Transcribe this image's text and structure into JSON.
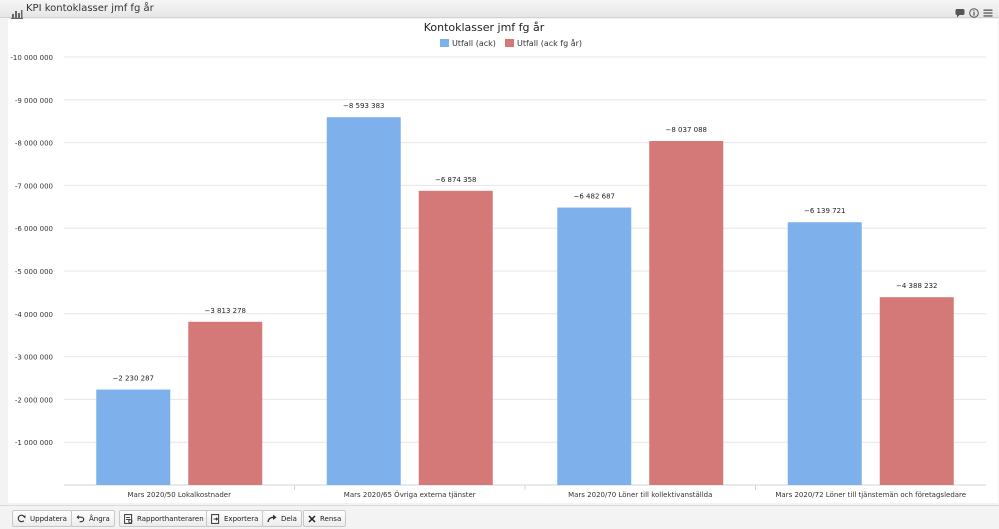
{
  "window": {
    "title": "KPI kontoklasser jmf fg år"
  },
  "colors": {
    "series_a": "#7eb0ec",
    "series_b": "#d47977",
    "grid": "#e6e6e6",
    "axis_text": "#333333"
  },
  "chart_data": {
    "type": "bar",
    "title": "Kontoklasser jmf fg år",
    "categories": [
      "Mars 2020/50 Lokalkostnader",
      "Mars 2020/65 Övriga externa tjänster",
      "Mars 2020/70 Löner till kollektivanställda",
      "Mars 2020/72 Löner till tjänstemän och företagsledare"
    ],
    "series": [
      {
        "name": "Utfall (ack)",
        "values": [
          -2230287,
          -8593383,
          -6482687,
          -6139721
        ],
        "labels": [
          "−2 230 287",
          "−8 593 383",
          "−6 482 687",
          "−6 139 721"
        ]
      },
      {
        "name": "Utfall (ack fg år)",
        "values": [
          -3813278,
          -6874358,
          -8037088,
          -4388232
        ],
        "labels": [
          "−3 813 278",
          "−6 874 358",
          "−8 037 088",
          "−4 388 232"
        ]
      }
    ],
    "ylim": [
      0,
      -10000000
    ],
    "y_ticks": [
      -10000000,
      -9000000,
      -8000000,
      -7000000,
      -6000000,
      -5000000,
      -4000000,
      -3000000,
      -2000000,
      -1000000
    ],
    "y_tick_labels": [
      "-10 000 000",
      "-9 000 000",
      "-8 000 000",
      "-7 000 000",
      "-6 000 000",
      "-5 000 000",
      "-4 000 000",
      "-3 000 000",
      "-2 000 000",
      "-1 000 000"
    ],
    "grid": true,
    "legend": "top-center"
  },
  "toolbar": {
    "update": "Uppdatera",
    "undo": "Ångra",
    "report_manager": "Rapporthanteraren",
    "export": "Exportera",
    "share": "Dela",
    "clear": "Rensa"
  }
}
